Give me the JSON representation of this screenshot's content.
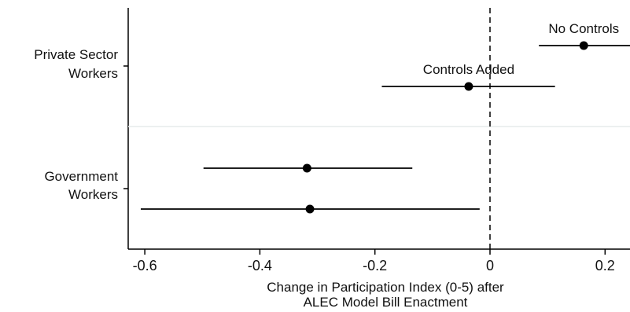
{
  "chart_data": {
    "type": "scatter",
    "subtype": "coefficient-plot",
    "title": "",
    "xlabel": [
      "Change in Participation Index (0-5) after",
      "ALEC Model Bill Enactment"
    ],
    "ylabel": "",
    "xlim": [
      -0.62,
      0.24
    ],
    "xticks": [
      -0.6,
      -0.4,
      -0.2,
      0,
      0.2
    ],
    "xtick_labels": [
      "-0.6",
      "-0.4",
      "-0.2",
      "0",
      "0.2"
    ],
    "reference_line": {
      "x": 0,
      "style": "dashed"
    },
    "grid": false,
    "groups": [
      {
        "label": [
          "Private Sector",
          "Workers"
        ]
      },
      {
        "label": [
          "Government",
          "Workers"
        ]
      }
    ],
    "estimates": [
      {
        "group": 0,
        "annotation": "No Controls",
        "x": 0.163,
        "ci": [
          0.085,
          0.245
        ]
      },
      {
        "group": 0,
        "annotation": "Controls Added",
        "x": -0.037,
        "ci": [
          -0.188,
          0.113
        ]
      },
      {
        "group": 1,
        "annotation": "",
        "x": -0.318,
        "ci": [
          -0.498,
          -0.135
        ]
      },
      {
        "group": 1,
        "annotation": "",
        "x": -0.313,
        "ci": [
          -0.607,
          -0.018
        ]
      }
    ],
    "colors": {
      "marker": "#000000",
      "line": "#000000",
      "divider": "#e6ecec"
    }
  }
}
